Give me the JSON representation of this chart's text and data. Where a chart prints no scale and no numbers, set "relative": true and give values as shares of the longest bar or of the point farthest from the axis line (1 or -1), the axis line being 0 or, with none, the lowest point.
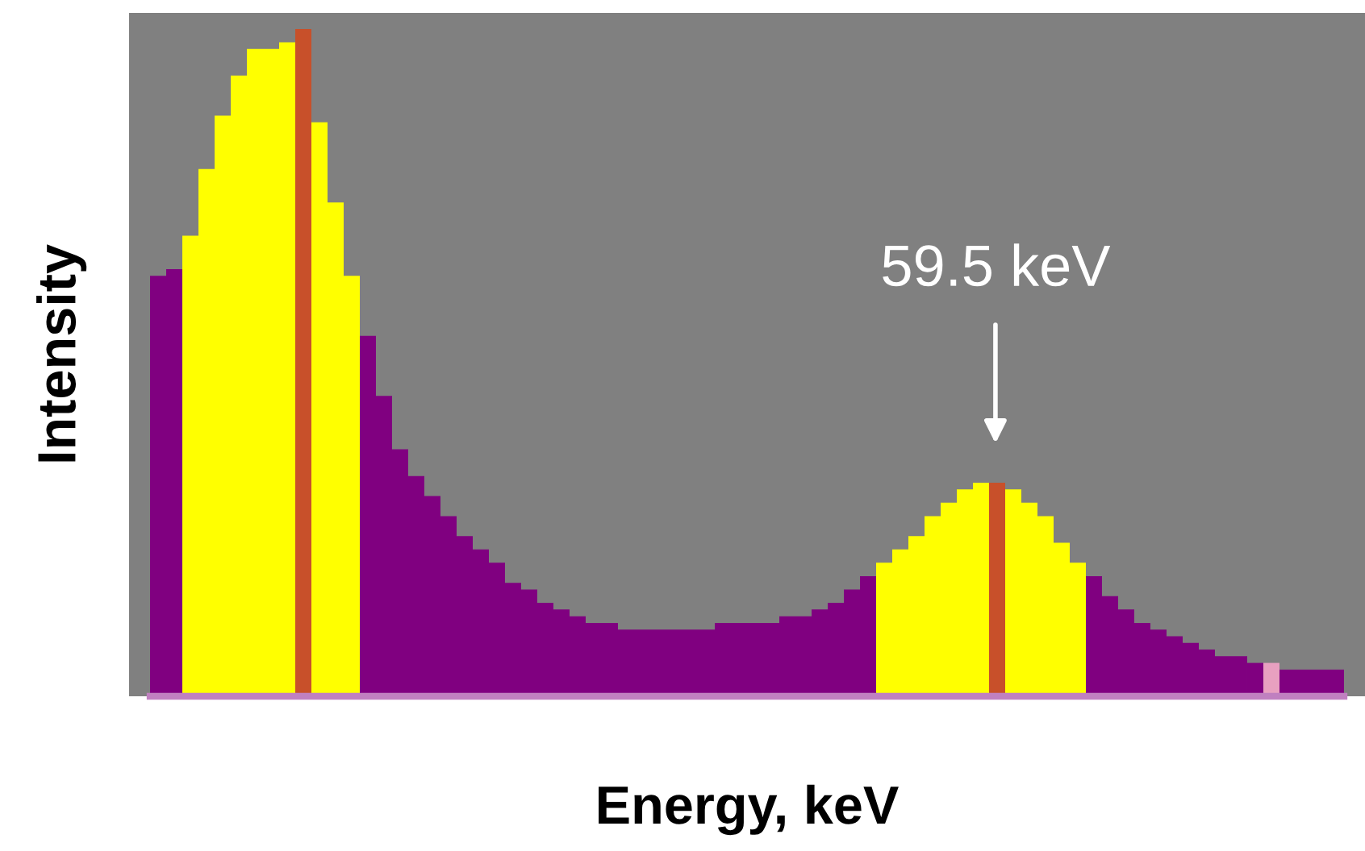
{
  "chart_data": {
    "type": "bar",
    "relative": true,
    "xlabel": "Energy, keV",
    "ylabel": "Intensity",
    "annotations": [
      "59.5 keV"
    ],
    "categories": [
      null,
      null,
      null,
      null,
      null,
      null,
      null,
      null,
      null,
      null,
      null,
      null,
      null,
      null,
      null,
      null,
      null,
      null,
      null,
      null,
      null,
      null,
      null,
      null,
      null,
      null,
      null,
      null,
      null,
      null,
      null,
      null,
      null,
      null,
      null,
      null,
      null,
      null,
      null,
      null,
      null,
      null,
      null,
      null,
      null,
      null,
      null,
      null,
      null,
      null,
      null,
      null,
      null,
      null,
      null,
      null,
      null,
      null,
      null,
      null,
      null,
      null,
      null,
      null,
      null,
      null,
      null,
      null,
      null,
      null,
      null,
      null,
      null,
      null
    ],
    "series": [
      {
        "values": [
          0.63,
          0.64,
          0.69,
          0.79,
          0.87,
          0.93,
          0.97,
          0.97,
          0.98,
          1.0,
          0.86,
          0.74,
          0.63,
          0.54,
          0.45,
          0.37,
          0.33,
          0.3,
          0.27,
          0.24,
          0.22,
          0.2,
          0.17,
          0.16,
          0.14,
          0.13,
          0.12,
          0.11,
          0.11,
          0.1,
          0.1,
          0.1,
          0.1,
          0.1,
          0.1,
          0.11,
          0.11,
          0.11,
          0.11,
          0.12,
          0.12,
          0.13,
          0.14,
          0.16,
          0.18,
          0.2,
          0.22,
          0.24,
          0.27,
          0.29,
          0.31,
          0.32,
          0.32,
          0.31,
          0.29,
          0.27,
          0.23,
          0.2,
          0.18,
          0.15,
          0.13,
          0.11,
          0.1,
          0.09,
          0.08,
          0.07,
          0.06,
          0.06,
          0.05,
          0.05,
          0.04,
          0.04,
          0.04,
          0.04
        ],
        "colors": [
          "#800080",
          "#800080",
          "#ffff00",
          "#ffff00",
          "#ffff00",
          "#ffff00",
          "#ffff00",
          "#ffff00",
          "#ffff00",
          "#c8502a",
          "#ffff00",
          "#ffff00",
          "#ffff00",
          "#800080",
          "#800080",
          "#800080",
          "#800080",
          "#800080",
          "#800080",
          "#800080",
          "#800080",
          "#800080",
          "#800080",
          "#800080",
          "#800080",
          "#800080",
          "#800080",
          "#800080",
          "#800080",
          "#800080",
          "#800080",
          "#800080",
          "#800080",
          "#800080",
          "#800080",
          "#800080",
          "#800080",
          "#800080",
          "#800080",
          "#800080",
          "#800080",
          "#800080",
          "#800080",
          "#800080",
          "#800080",
          "#ffff00",
          "#ffff00",
          "#ffff00",
          "#ffff00",
          "#ffff00",
          "#ffff00",
          "#ffff00",
          "#c8502a",
          "#ffff00",
          "#ffff00",
          "#ffff00",
          "#ffff00",
          "#ffff00",
          "#800080",
          "#800080",
          "#800080",
          "#800080",
          "#800080",
          "#800080",
          "#800080",
          "#800080",
          "#800080",
          "#800080",
          "#800080",
          "#e8a0c0",
          "#800080",
          "#800080",
          "#800080",
          "#800080"
        ]
      }
    ]
  }
}
